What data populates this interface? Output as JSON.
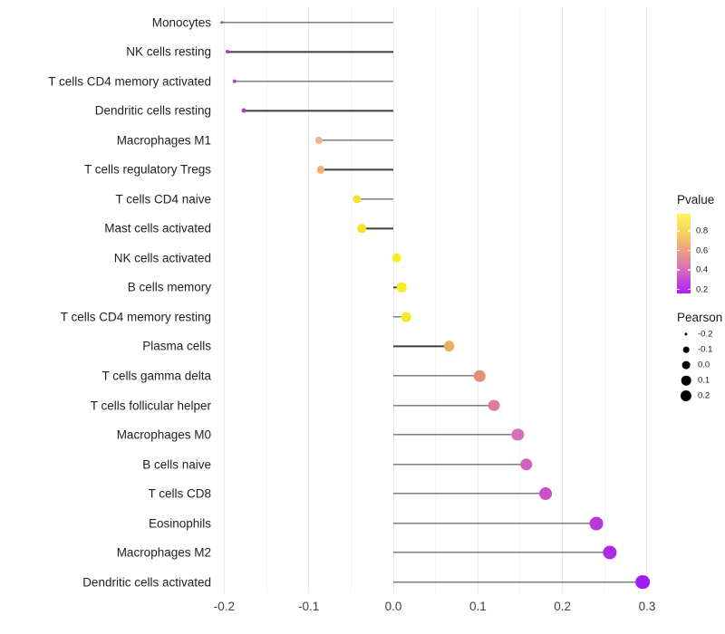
{
  "chart_data": {
    "type": "scatter",
    "subtype": "lollipop",
    "title": "",
    "xlabel": "",
    "ylabel": "",
    "x_ticks": [
      "-0.2",
      "-0.1",
      "0.0",
      "0.1",
      "0.2",
      "0.3"
    ],
    "x_tick_values": [
      -0.2,
      -0.1,
      0.0,
      0.1,
      0.2,
      0.3
    ],
    "x_minor_values": [
      -0.15,
      -0.05,
      0.05,
      0.15,
      0.25
    ],
    "xlim": [
      -0.228,
      0.32
    ],
    "baseline": 0,
    "grid": "vertical-only",
    "categories": [
      "Monocytes",
      "NK cells resting",
      "T cells CD4 memory activated",
      "Dendritic cells resting",
      "Macrophages M1",
      "T cells regulatory  Tregs",
      "T cells CD4 naive",
      "Mast cells activated",
      "NK cells activated",
      "B cells memory",
      "T cells CD4 memory resting",
      "Plasma cells",
      "T cells gamma delta",
      "T cells follicular helper",
      "Macrophages M0",
      "B cells naive",
      "T cells CD8",
      "Eosinophils",
      "Macrophages M2",
      "Dendritic cells activated"
    ],
    "points": [
      {
        "label": "Monocytes",
        "pearson": -0.203,
        "color": "#B43BC8"
      },
      {
        "label": "NK cells resting",
        "pearson": -0.196,
        "color": "#B23AC9"
      },
      {
        "label": "T cells CD4 memory activated",
        "pearson": -0.188,
        "color": "#B03BCB"
      },
      {
        "label": "Dendritic cells resting",
        "pearson": -0.177,
        "color": "#B53CC6"
      },
      {
        "label": "Macrophages M1",
        "pearson": -0.088,
        "color": "#F2B180"
      },
      {
        "label": "T cells regulatory  Tregs",
        "pearson": -0.086,
        "color": "#F1AF7E"
      },
      {
        "label": "T cells CD4 naive",
        "pearson": -0.043,
        "color": "#F6E22C"
      },
      {
        "label": "Mast cells activated",
        "pearson": -0.037,
        "color": "#F6E12C"
      },
      {
        "label": "NK cells activated",
        "pearson": 0.004,
        "color": "#F9EC1E"
      },
      {
        "label": "B cells memory",
        "pearson": 0.01,
        "color": "#F8EA21"
      },
      {
        "label": "T cells CD4 memory resting",
        "pearson": 0.015,
        "color": "#F7E824"
      },
      {
        "label": "Plasma cells",
        "pearson": 0.066,
        "color": "#EDAD5F"
      },
      {
        "label": "T cells gamma delta",
        "pearson": 0.102,
        "color": "#E38E74"
      },
      {
        "label": "T cells follicular helper",
        "pearson": 0.119,
        "color": "#DD8090"
      },
      {
        "label": "Macrophages M0",
        "pearson": 0.147,
        "color": "#D672B3"
      },
      {
        "label": "B cells naive",
        "pearson": 0.157,
        "color": "#D161BD"
      },
      {
        "label": "T cells CD8",
        "pearson": 0.18,
        "color": "#CB52C6"
      },
      {
        "label": "Eosinophils",
        "pearson": 0.24,
        "color": "#B739D8"
      },
      {
        "label": "Macrophages M2",
        "pearson": 0.256,
        "color": "#AF2BE3"
      },
      {
        "label": "Dendritic cells activated",
        "pearson": 0.295,
        "color": "#A21EF0"
      }
    ],
    "legend_pvalue": {
      "title": "Pvalue",
      "ticks": [
        "0.8",
        "0.6",
        "0.4",
        "0.2"
      ],
      "gradient_top_to_bottom": [
        "#FCF657",
        "#FBE25D",
        "#F9CE66",
        "#F3B273",
        "#E8988C",
        "#DC7FA8",
        "#D05FC4",
        "#BC3EE1",
        "#B01FF5"
      ]
    },
    "legend_pearson": {
      "title": "Pearson",
      "sizes": [
        "-0.2",
        "-0.1",
        "0.0",
        "0.1",
        "0.2"
      ],
      "size_values": [
        -0.2,
        -0.1,
        0.0,
        0.1,
        0.2
      ]
    }
  }
}
